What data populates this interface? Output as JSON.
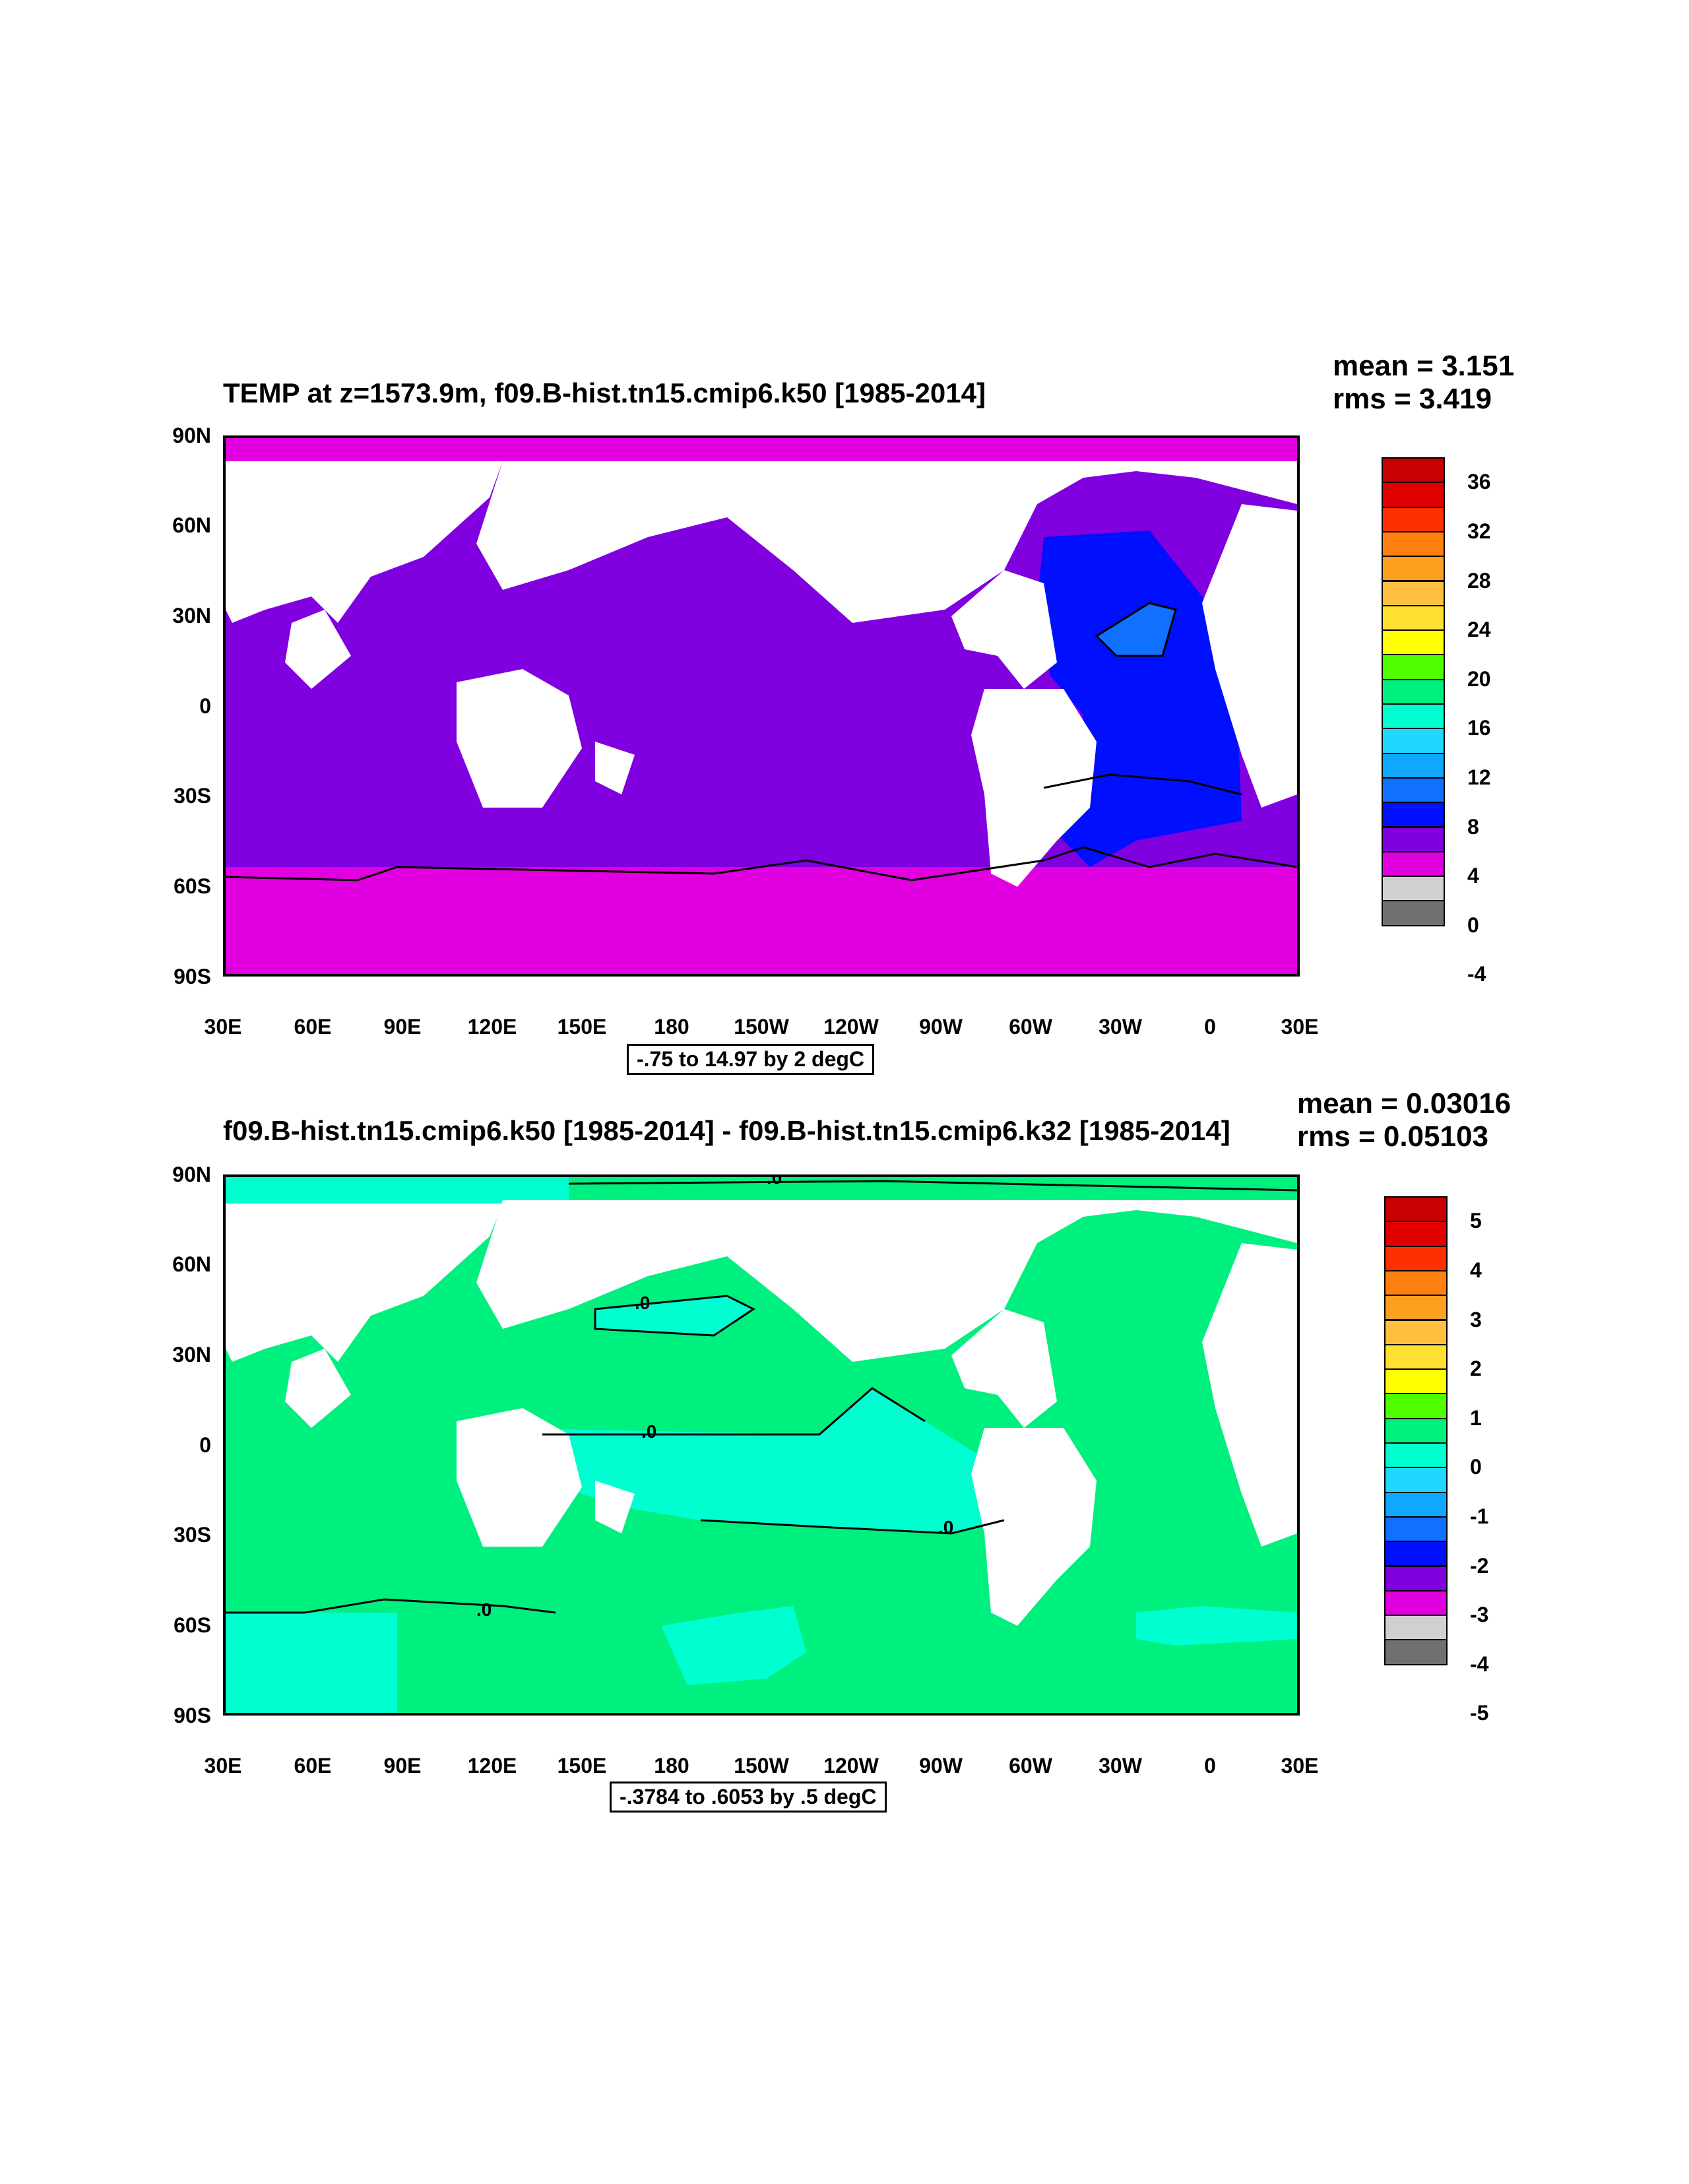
{
  "panels": [
    {
      "stats": {
        "mean": "mean = 3.151",
        "rms": "rms = 3.419"
      },
      "title": "TEMP at z=1573.9m, f09.B-hist.tn15.cmip6.k50 [1985-2014]",
      "yticks": [
        "90N",
        "60N",
        "30N",
        "0",
        "30S",
        "60S",
        "90S"
      ],
      "xticks": [
        "30E",
        "60E",
        "90E",
        "120E",
        "150E",
        "180",
        "150W",
        "120W",
        "90W",
        "60W",
        "30W",
        "0",
        "30E"
      ],
      "range_label": "-.75 to 14.97 by 2 degC",
      "colorbar": {
        "labels": [
          "36",
          "32",
          "28",
          "24",
          "20",
          "16",
          "12",
          "8",
          "4",
          "0",
          "-4"
        ],
        "colors": [
          "#c80000",
          "#e00000",
          "#ff3000",
          "#ff7f10",
          "#ff9f20",
          "#ffc040",
          "#ffe030",
          "#ffff00",
          "#50ff00",
          "#00f080",
          "#00ffd0",
          "#20d8ff",
          "#10a8ff",
          "#1070ff",
          "#0010ff",
          "#8000e0",
          "#e000e0",
          "#d0d0d0",
          "#707070"
        ]
      }
    },
    {
      "stats": {
        "mean": "mean = 0.03016",
        "rms": "rms = 0.05103"
      },
      "title": "f09.B-hist.tn15.cmip6.k50 [1985-2014] - f09.B-hist.tn15.cmip6.k32 [1985-2014]",
      "yticks": [
        "90N",
        "60N",
        "30N",
        "0",
        "30S",
        "60S",
        "90S"
      ],
      "xticks": [
        "30E",
        "60E",
        "90E",
        "120E",
        "150E",
        "180",
        "150W",
        "120W",
        "90W",
        "60W",
        "30W",
        "0",
        "30E"
      ],
      "range_label": "-.3784 to .6053 by .5 degC",
      "contour_label": ".0",
      "colorbar": {
        "labels": [
          "5",
          "4",
          "3",
          "2",
          "1",
          "0",
          "-1",
          "-2",
          "-3",
          "-4",
          "-5"
        ],
        "colors": [
          "#c80000",
          "#e00000",
          "#ff3000",
          "#ff7f10",
          "#ff9f20",
          "#ffc040",
          "#ffe030",
          "#ffff00",
          "#50ff00",
          "#00f080",
          "#00ffd0",
          "#20d8ff",
          "#10a8ff",
          "#1070ff",
          "#0010ff",
          "#8000e0",
          "#e000e0",
          "#d0d0d0",
          "#707070"
        ]
      }
    }
  ],
  "colors": {
    "land": "#ffffff",
    "top_main": "#8000e0",
    "top_polar": "#e000e0",
    "top_atlantic": "#0010ff",
    "top_patch": "#1070ff",
    "bot_main": "#00f080",
    "bot_cool": "#00ffd0",
    "bot_warm": "#50ff00"
  }
}
